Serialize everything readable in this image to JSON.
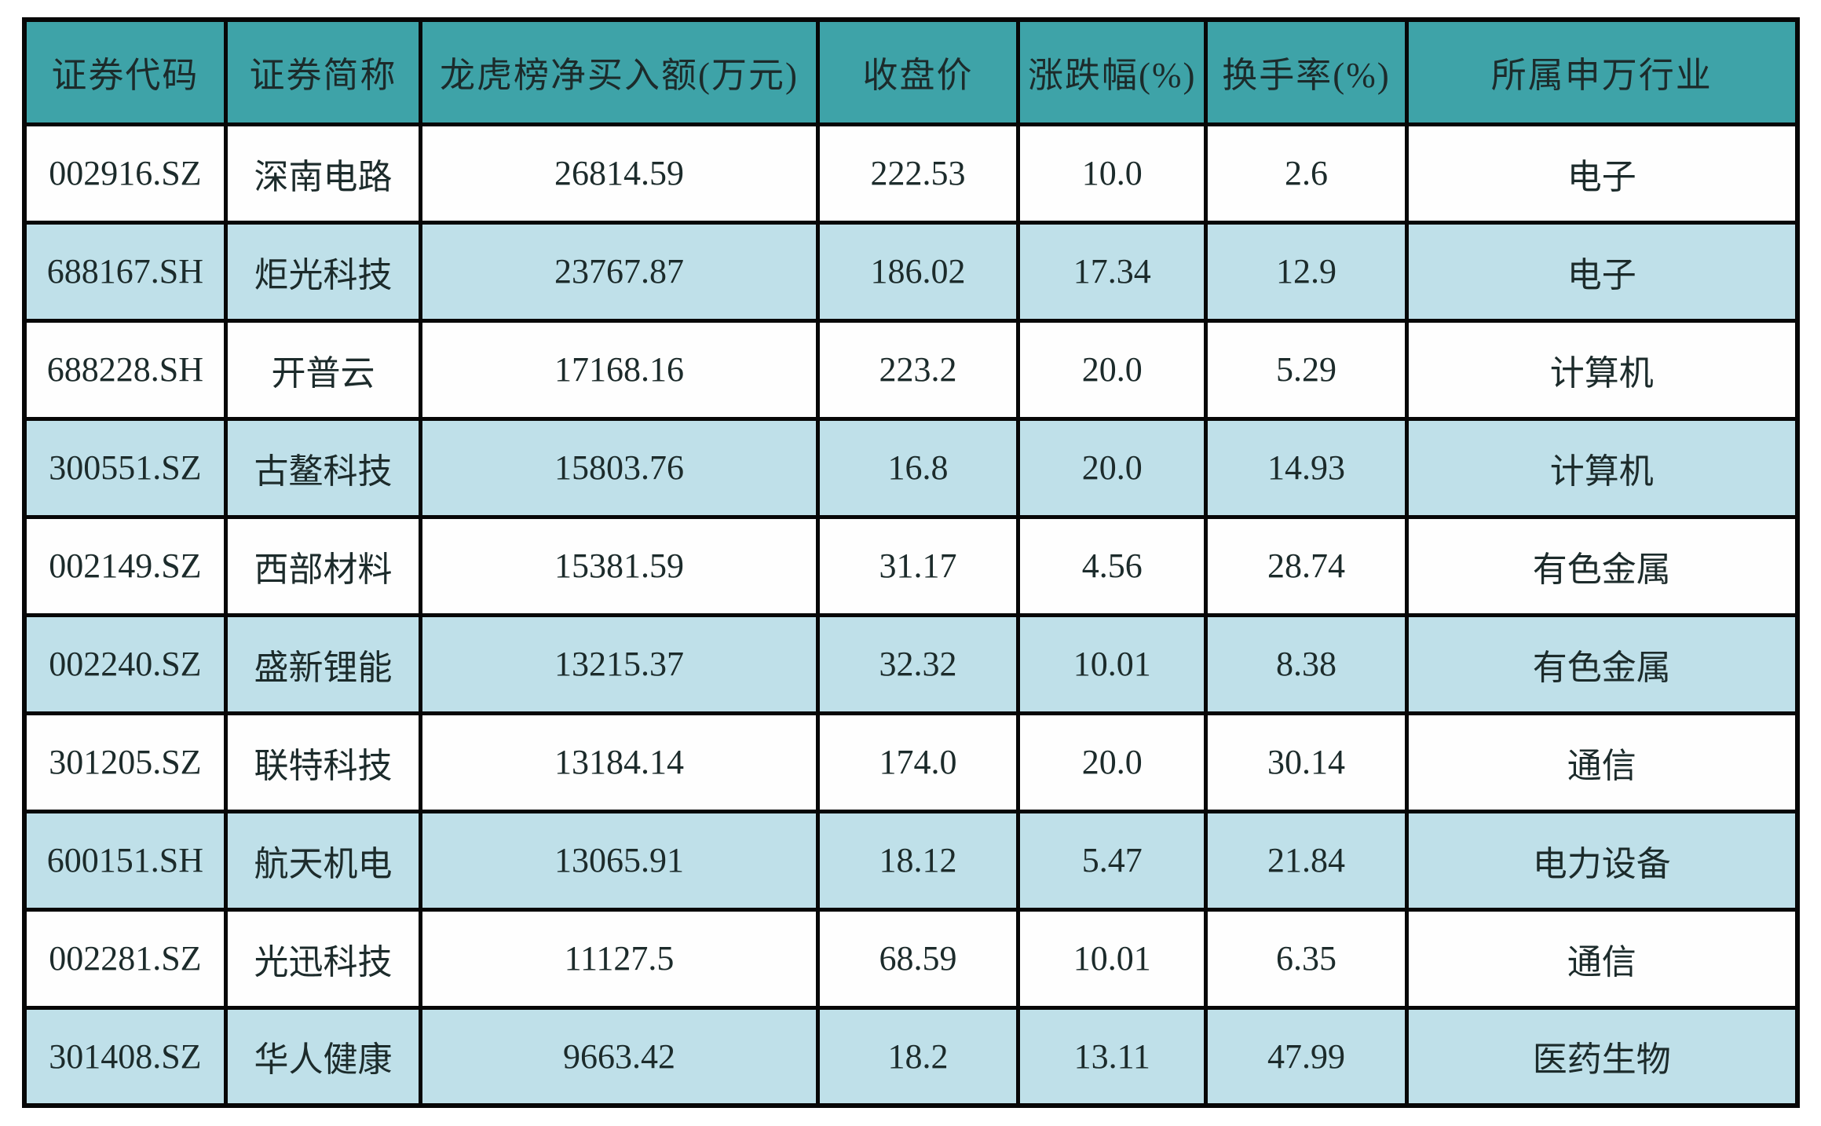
{
  "colors": {
    "header_bg": "#3EA3A8",
    "row_alt_bg": "#BFE0E9",
    "row_bg": "#FEFEFE",
    "border": "#070707",
    "text": "#1C2B2B"
  },
  "chart_data": {
    "type": "table",
    "columns": [
      "证券代码",
      "证券简称",
      "龙虎榜净买入额(万元)",
      "收盘价",
      "涨跌幅(%)",
      "换手率(%)",
      "所属申万行业"
    ],
    "rows": [
      [
        "002916.SZ",
        "深南电路",
        "26814.59",
        "222.53",
        "10.0",
        "2.6",
        "电子"
      ],
      [
        "688167.SH",
        "炬光科技",
        "23767.87",
        "186.02",
        "17.34",
        "12.9",
        "电子"
      ],
      [
        "688228.SH",
        "开普云",
        "17168.16",
        "223.2",
        "20.0",
        "5.29",
        "计算机"
      ],
      [
        "300551.SZ",
        "古鳌科技",
        "15803.76",
        "16.8",
        "20.0",
        "14.93",
        "计算机"
      ],
      [
        "002149.SZ",
        "西部材料",
        "15381.59",
        "31.17",
        "4.56",
        "28.74",
        "有色金属"
      ],
      [
        "002240.SZ",
        "盛新锂能",
        "13215.37",
        "32.32",
        "10.01",
        "8.38",
        "有色金属"
      ],
      [
        "301205.SZ",
        "联特科技",
        "13184.14",
        "174.0",
        "20.0",
        "30.14",
        "通信"
      ],
      [
        "600151.SH",
        "航天机电",
        "13065.91",
        "18.12",
        "5.47",
        "21.84",
        "电力设备"
      ],
      [
        "002281.SZ",
        "光迅科技",
        "11127.5",
        "68.59",
        "10.01",
        "6.35",
        "通信"
      ],
      [
        "301408.SZ",
        "华人健康",
        "9663.42",
        "18.2",
        "13.11",
        "47.99",
        "医药生物"
      ]
    ]
  }
}
